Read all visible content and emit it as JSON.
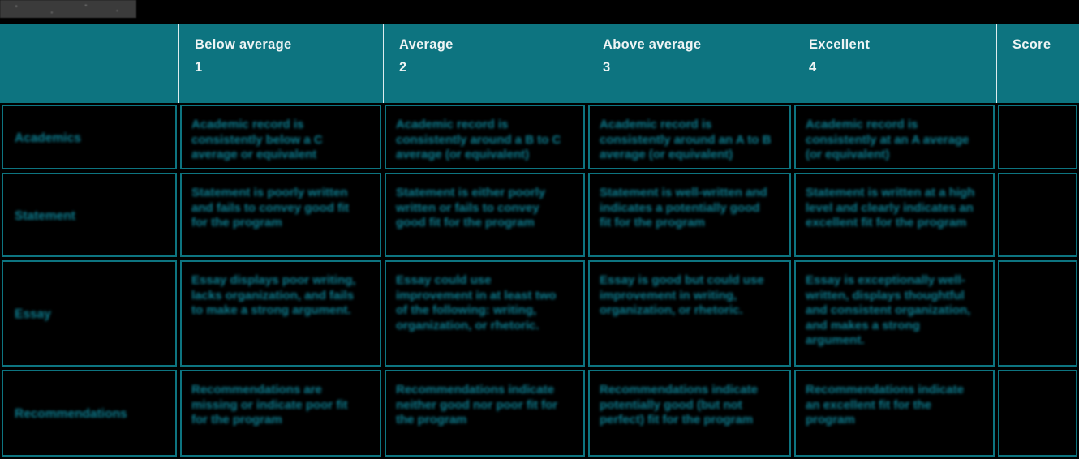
{
  "colors": {
    "header_bg": "#0d7480",
    "grid": "#0d7480",
    "cell_text": "#0e8093",
    "header_text": "#eef4f4",
    "page_bg": "#000000",
    "title_bar_bg": "#3b3b3b"
  },
  "table": {
    "headers": [
      {
        "label": "",
        "number": ""
      },
      {
        "label": "Below average",
        "number": "1"
      },
      {
        "label": "Average",
        "number": "2"
      },
      {
        "label": "Above average",
        "number": "3"
      },
      {
        "label": "Excellent",
        "number": "4"
      },
      {
        "label": "Score",
        "number": ""
      }
    ],
    "rows": [
      {
        "label": "Academics",
        "cells": [
          "Academic record is consistently below a C average or equivalent",
          "Academic record is consistently around a B to C average (or equivalent)",
          "Academic record is consistently around an A to B average (or equivalent)",
          "Academic record is consistently at an A average (or equivalent)"
        ],
        "score": ""
      },
      {
        "label": "Statement",
        "cells": [
          "Statement is poorly written and fails to convey good fit for the program",
          "Statement is either poorly written or fails to convey good fit for the program",
          "Statement is well-written and indicates a potentially good fit for the program",
          "Statement is written at a high level and clearly indicates an excellent fit for the program"
        ],
        "score": ""
      },
      {
        "label": "Essay",
        "cells": [
          "Essay displays poor writing, lacks organization, and fails to make a strong argument.",
          "Essay could use improvement in at least two of the following: writing, organization, or rhetoric.",
          "Essay is good but could use improvement in writing, organization, or rhetoric.",
          "Essay is exceptionally well-written, displays thoughtful and consistent organization, and makes a strong argument."
        ],
        "score": ""
      },
      {
        "label": "Recommendations",
        "cells": [
          "Recommendations are missing or indicate poor fit for the program",
          "Recommendations indicate neither good nor poor fit for the program",
          "Recommendations indicate potentially good (but not perfect) fit for the program",
          "Recommendations indicate an excellent fit for the program"
        ],
        "score": ""
      }
    ]
  }
}
